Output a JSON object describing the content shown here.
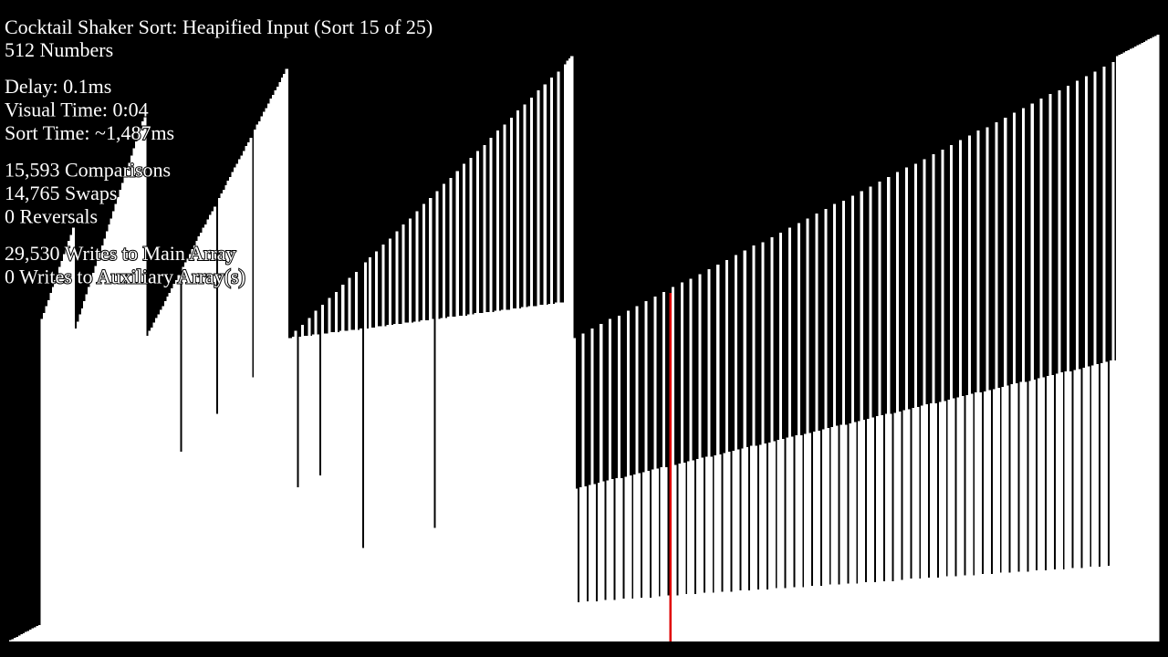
{
  "header": {
    "title": "Cocktail Shaker Sort: Heapified Input (Sort 15 of 25)",
    "subtitle": "512 Numbers"
  },
  "stats": [
    [
      "Delay: 0.1ms",
      "Visual Time: 0:04",
      "Sort Time: ~1,487ms"
    ],
    [
      "15,593 Comparisons",
      "14,765 Swaps",
      "0 Reversals"
    ],
    [
      "29,530 Writes to Main Array",
      "0 Writes to Auxiliary Array(s)"
    ]
  ],
  "array": {
    "color": "#ffffff",
    "highlight_index": 294,
    "highlight_color": "#e00000",
    "values": [
      1,
      2,
      3,
      4,
      5,
      6,
      7,
      8,
      9,
      10,
      11,
      12,
      13,
      14,
      272,
      277,
      283,
      288,
      294,
      299,
      305,
      310,
      316,
      321,
      327,
      332,
      338,
      343,
      349,
      264,
      270,
      276,
      281,
      287,
      293,
      299,
      305,
      311,
      317,
      322,
      328,
      334,
      340,
      346,
      352,
      357,
      363,
      369,
      375,
      381,
      387,
      392,
      398,
      404,
      410,
      416,
      422,
      427,
      433,
      439,
      445,
      258,
      262,
      265,
      269,
      273,
      276,
      280,
      283,
      287,
      291,
      294,
      298,
      302,
      305,
      309,
      160,
      316,
      320,
      323,
      327,
      331,
      334,
      338,
      342,
      345,
      349,
      352,
      356,
      360,
      363,
      367,
      192,
      374,
      378,
      381,
      385,
      389,
      392,
      396,
      400,
      403,
      407,
      410,
      414,
      418,
      421,
      425,
      223,
      432,
      436,
      439,
      443,
      447,
      450,
      454,
      458,
      461,
      465,
      468,
      472,
      476,
      479,
      483,
      256,
      256,
      257,
      262,
      130,
      257,
      267,
      258,
      258,
      273,
      258,
      259,
      279,
      259,
      140,
      284,
      260,
      260,
      290,
      261,
      261,
      295,
      261,
      262,
      301,
      262,
      262,
      307,
      263,
      263,
      312,
      263,
      264,
      79,
      320,
      264,
      324,
      265,
      265,
      329,
      266,
      266,
      335,
      266,
      267,
      340,
      267,
      268,
      346,
      268,
      268,
      352,
      269,
      269,
      357,
      269,
      270,
      363,
      270,
      271,
      369,
      271,
      271,
      374,
      272,
      96,
      380,
      272,
      273,
      386,
      273,
      274,
      391,
      274,
      274,
      397,
      275,
      275,
      403,
      275,
      276,
      408,
      276,
      277,
      414,
      277,
      277,
      419,
      278,
      278,
      425,
      278,
      279,
      431,
      279,
      280,
      436,
      280,
      280,
      442,
      281,
      281,
      448,
      281,
      282,
      453,
      282,
      283,
      459,
      283,
      283,
      465,
      284,
      284,
      470,
      284,
      285,
      476,
      285,
      286,
      481,
      286,
      286,
      487,
      490,
      492,
      494,
      256,
      129,
      33,
      130,
      260,
      131,
      34,
      132,
      264,
      133,
      34,
      134,
      268,
      135,
      35,
      136,
      272,
      137,
      35,
      138,
      275,
      138,
      36,
      139,
      279,
      140,
      36,
      141,
      283,
      142,
      37,
      143,
      287,
      144,
      37,
      145,
      291,
      146,
      38,
      147,
      295,
      147,
      39,
      294,
      299,
      149,
      39,
      150,
      303,
      151,
      40,
      152,
      306,
      153,
      40,
      154,
      310,
      155,
      41,
      156,
      314,
      156,
      41,
      157,
      318,
      158,
      42,
      159,
      322,
      160,
      42,
      161,
      326,
      162,
      43,
      163,
      330,
      164,
      43,
      165,
      334,
      165,
      44,
      166,
      337,
      167,
      44,
      168,
      341,
      169,
      45,
      170,
      345,
      171,
      45,
      172,
      349,
      173,
      46,
      174,
      353,
      174,
      46,
      175,
      357,
      176,
      47,
      177,
      361,
      178,
      47,
      179,
      365,
      180,
      48,
      181,
      369,
      182,
      48,
      183,
      372,
      183,
      49,
      184,
      376,
      185,
      49,
      186,
      380,
      187,
      50,
      188,
      384,
      189,
      50,
      190,
      388,
      191,
      51,
      192,
      392,
      192,
      51,
      193,
      396,
      194,
      52,
      195,
      400,
      196,
      53,
      197,
      403,
      198,
      53,
      199,
      407,
      200,
      54,
      201,
      411,
      201,
      54,
      202,
      415,
      203,
      55,
      204,
      419,
      205,
      55,
      206,
      423,
      207,
      56,
      208,
      427,
      209,
      56,
      210,
      431,
      210,
      57,
      211,
      434,
      212,
      57,
      213,
      438,
      214,
      58,
      215,
      442,
      216,
      58,
      217,
      446,
      218,
      59,
      219,
      450,
      219,
      59,
      220,
      454,
      221,
      60,
      222,
      458,
      223,
      60,
      224,
      462,
      225,
      61,
      226,
      465,
      227,
      61,
      228,
      469,
      228,
      62,
      229,
      473,
      230,
      62,
      231,
      477,
      232,
      63,
      233,
      481,
      234,
      63,
      235,
      485,
      236,
      64,
      237,
      489,
      237,
      494,
      495,
      496,
      497,
      498,
      499,
      500,
      501,
      502,
      503,
      504,
      505,
      506,
      507,
      508,
      509,
      510,
      511,
      512
    ]
  }
}
